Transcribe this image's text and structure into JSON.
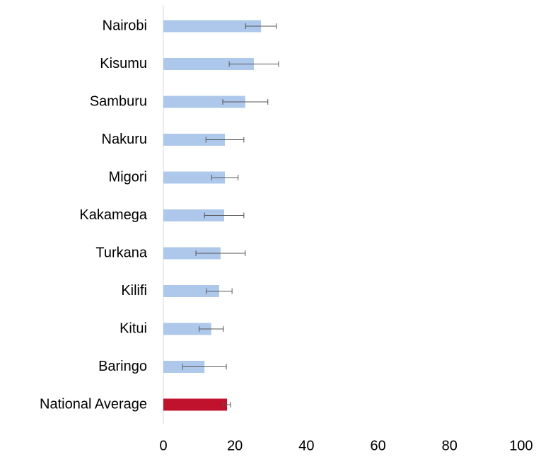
{
  "chart_data": {
    "type": "bar",
    "orientation": "horizontal",
    "categories": [
      "Nairobi",
      "Kisumu",
      "Samburu",
      "Nakuru",
      "Migori",
      "Kakamega",
      "Turkana",
      "Kilifi",
      "Kitui",
      "Baringo",
      "National Average"
    ],
    "values": [
      27.3,
      25.3,
      22.9,
      17.2,
      17.2,
      17.0,
      16.0,
      15.6,
      13.4,
      11.5,
      17.8
    ],
    "errors": [
      4.3,
      6.9,
      6.3,
      5.3,
      3.7,
      5.5,
      6.9,
      3.6,
      3.4,
      6.1,
      1.0
    ],
    "colors": [
      "#aec8ec",
      "#aec8ec",
      "#aec8ec",
      "#aec8ec",
      "#aec8ec",
      "#aec8ec",
      "#aec8ec",
      "#aec8ec",
      "#aec8ec",
      "#aec8ec",
      "#c0122c"
    ],
    "xlim": [
      0,
      100
    ],
    "xticks": [
      0,
      20,
      40,
      60,
      80,
      100
    ],
    "grid": false
  }
}
